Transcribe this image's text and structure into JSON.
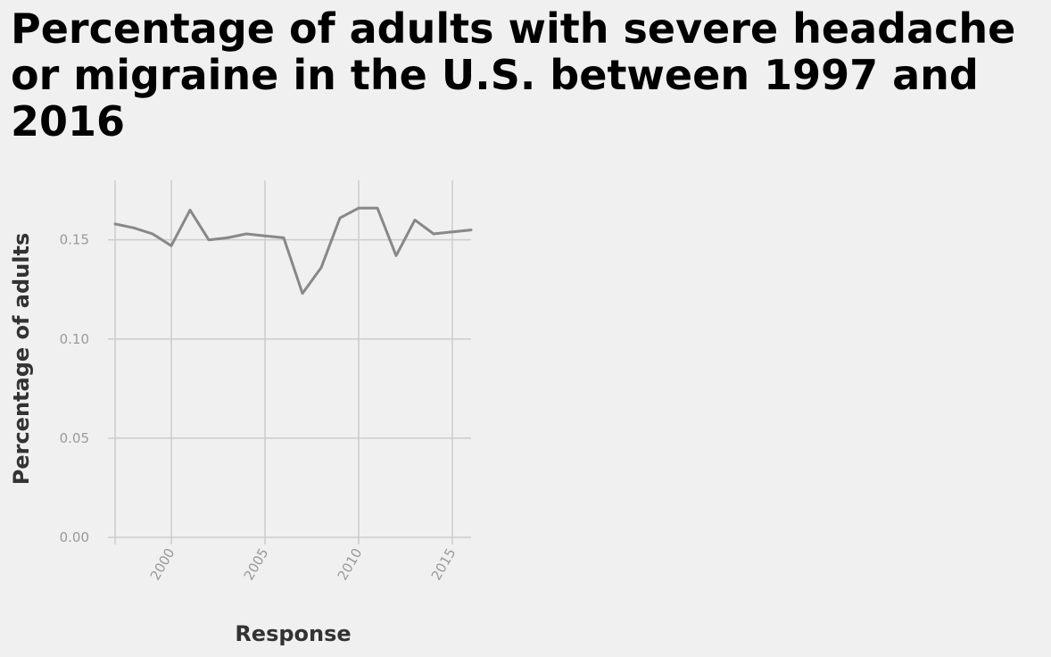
{
  "chart_data": {
    "type": "line",
    "title": "Percentage of adults with severe headache or migraine in the U.S. between 1997 and 2016",
    "xlabel": "Response",
    "ylabel": "Percentage of adults",
    "x": [
      1997,
      1998,
      1999,
      2000,
      2001,
      2002,
      2003,
      2004,
      2005,
      2006,
      2007,
      2008,
      2009,
      2010,
      2011,
      2012,
      2013,
      2014,
      2015,
      2016
    ],
    "series": [
      {
        "values": [
          0.158,
          0.156,
          0.153,
          0.147,
          0.165,
          0.15,
          0.151,
          0.153,
          0.152,
          0.151,
          0.123,
          0.136,
          0.161,
          0.166,
          0.166,
          0.142,
          0.16,
          0.153,
          0.154,
          0.155
        ],
        "color": "#888888"
      }
    ],
    "xlim": [
      1997,
      2016
    ],
    "ylim": [
      0,
      0.18
    ],
    "x_ticks": [
      2000,
      2005,
      2010,
      2015
    ],
    "x_tick_labels": [
      "2000",
      "2005",
      "2010",
      "2015"
    ],
    "y_ticks": [
      0,
      0.05,
      0.1,
      0.15
    ],
    "y_tick_labels": [
      "0.00",
      "0.05",
      "0.10",
      "0.15"
    ],
    "grid": true,
    "legend": "none"
  }
}
